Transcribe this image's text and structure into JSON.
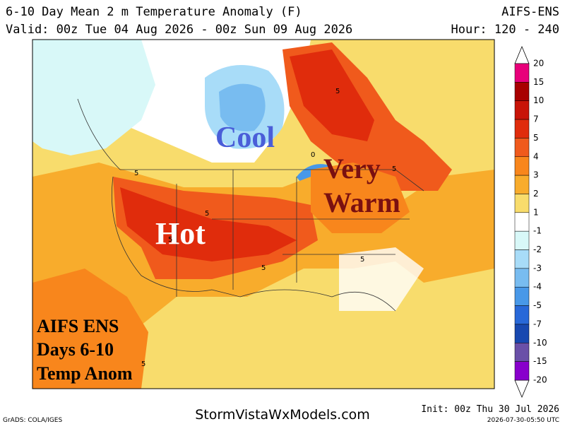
{
  "header": {
    "title": "6-10 Day Mean 2 m Temperature Anomaly (F)",
    "model": "AIFS-ENS",
    "valid": "Valid: 00z Tue 04 Aug 2026 - 00z Sun 09 Aug 2026",
    "hours": "Hour: 120 - 240"
  },
  "map": {
    "annotations": [
      "Cool",
      "Very",
      "Warm",
      "Hot"
    ],
    "box_lines": [
      "AIFS ENS",
      "Days 6-10",
      "Temp Anom"
    ],
    "contour_labels": [
      "5",
      "5",
      "5",
      "5",
      "5",
      "5",
      "0",
      "5",
      "5"
    ]
  },
  "legend": {
    "levels": [
      "20",
      "15",
      "10",
      "7",
      "5",
      "4",
      "3",
      "2",
      "1",
      "-1",
      "-2",
      "-3",
      "-4",
      "-5",
      "-7",
      "-10",
      "-15",
      "-20"
    ],
    "colors": [
      "#e8007a",
      "#a80000",
      "#c81408",
      "#e02c0c",
      "#f05a1c",
      "#f8861c",
      "#f8ac2c",
      "#f8dc6c",
      "#ffffff",
      "#d8f8f8",
      "#a8dcf8",
      "#78bcf0",
      "#4898e8",
      "#2868d8",
      "#1848b0",
      "#6a50a8",
      "#8800cc"
    ]
  },
  "footer": {
    "credit": "GrADS: COLA/IGES",
    "site": "StormVistaWxModels.com",
    "init": "Init: 00z Thu 30 Jul 2026",
    "stamp": "2026-07-30-05:50 UTC"
  }
}
